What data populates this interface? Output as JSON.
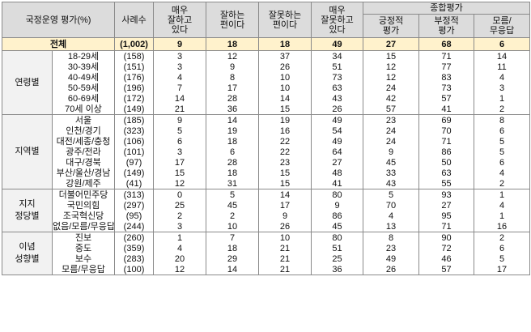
{
  "header": {
    "col_label": "국정운영 평가(%)",
    "col_n": "사례수",
    "col_1": "매우\n잘하고\n있다",
    "col_2": "잘하는\n편이다",
    "col_3": "잘못하는\n편이다",
    "col_4": "매우\n잘못하고\n있다",
    "group_label": "종합평가",
    "col_5": "긍정적\n평가",
    "col_6": "부정적\n평가",
    "col_7": "모름/\n무응답"
  },
  "total": {
    "label": "전체",
    "n": "(1,002)",
    "v": [
      "9",
      "18",
      "18",
      "49",
      "27",
      "68",
      "6"
    ]
  },
  "groups": [
    {
      "label": "연령별",
      "rows": [
        {
          "label": "18-29세",
          "n": "(158)",
          "v": [
            "3",
            "12",
            "37",
            "34",
            "15",
            "71",
            "14"
          ]
        },
        {
          "label": "30-39세",
          "n": "(151)",
          "v": [
            "3",
            "9",
            "26",
            "51",
            "12",
            "77",
            "11"
          ]
        },
        {
          "label": "40-49세",
          "n": "(176)",
          "v": [
            "4",
            "8",
            "10",
            "73",
            "12",
            "83",
            "4"
          ]
        },
        {
          "label": "50-59세",
          "n": "(196)",
          "v": [
            "7",
            "17",
            "10",
            "63",
            "24",
            "73",
            "3"
          ]
        },
        {
          "label": "60-69세",
          "n": "(172)",
          "v": [
            "14",
            "28",
            "14",
            "43",
            "42",
            "57",
            "1"
          ]
        },
        {
          "label": "70세 이상",
          "n": "(149)",
          "v": [
            "21",
            "36",
            "15",
            "26",
            "57",
            "41",
            "2"
          ]
        }
      ]
    },
    {
      "label": "지역별",
      "rows": [
        {
          "label": "서울",
          "n": "(185)",
          "v": [
            "9",
            "14",
            "19",
            "49",
            "23",
            "69",
            "8"
          ]
        },
        {
          "label": "인천/경기",
          "n": "(323)",
          "v": [
            "5",
            "19",
            "16",
            "54",
            "24",
            "70",
            "6"
          ]
        },
        {
          "label": "대전/세종/충청",
          "n": "(106)",
          "v": [
            "6",
            "18",
            "22",
            "49",
            "24",
            "71",
            "5"
          ]
        },
        {
          "label": "광주/전라",
          "n": "(101)",
          "v": [
            "3",
            "6",
            "22",
            "64",
            "9",
            "86",
            "5"
          ]
        },
        {
          "label": "대구/경북",
          "n": "(97)",
          "v": [
            "17",
            "28",
            "23",
            "27",
            "45",
            "50",
            "6"
          ]
        },
        {
          "label": "부산/울산/경남",
          "n": "(149)",
          "v": [
            "15",
            "18",
            "15",
            "48",
            "33",
            "63",
            "4"
          ]
        },
        {
          "label": "강원/제주",
          "n": "(41)",
          "v": [
            "12",
            "31",
            "15",
            "41",
            "43",
            "55",
            "2"
          ]
        }
      ]
    },
    {
      "label": "지지\n정당별",
      "rows": [
        {
          "label": "더불어민주당",
          "n": "(313)",
          "v": [
            "0",
            "5",
            "14",
            "80",
            "5",
            "93",
            "1"
          ]
        },
        {
          "label": "국민의힘",
          "n": "(297)",
          "v": [
            "25",
            "45",
            "17",
            "9",
            "70",
            "27",
            "4"
          ]
        },
        {
          "label": "조국혁신당",
          "n": "(95)",
          "v": [
            "2",
            "2",
            "9",
            "86",
            "4",
            "95",
            "1"
          ]
        },
        {
          "label": "없음/모름/무응답",
          "n": "(244)",
          "v": [
            "3",
            "10",
            "26",
            "45",
            "13",
            "71",
            "16"
          ]
        }
      ]
    },
    {
      "label": "이념\n성향별",
      "rows": [
        {
          "label": "진보",
          "n": "(260)",
          "v": [
            "1",
            "7",
            "10",
            "80",
            "8",
            "90",
            "2"
          ]
        },
        {
          "label": "중도",
          "n": "(359)",
          "v": [
            "4",
            "18",
            "21",
            "51",
            "23",
            "72",
            "6"
          ]
        },
        {
          "label": "보수",
          "n": "(283)",
          "v": [
            "20",
            "29",
            "21",
            "25",
            "49",
            "46",
            "5"
          ]
        },
        {
          "label": "모름/무응답",
          "n": "(100)",
          "v": [
            "12",
            "14",
            "21",
            "36",
            "26",
            "57",
            "17"
          ]
        }
      ]
    }
  ]
}
